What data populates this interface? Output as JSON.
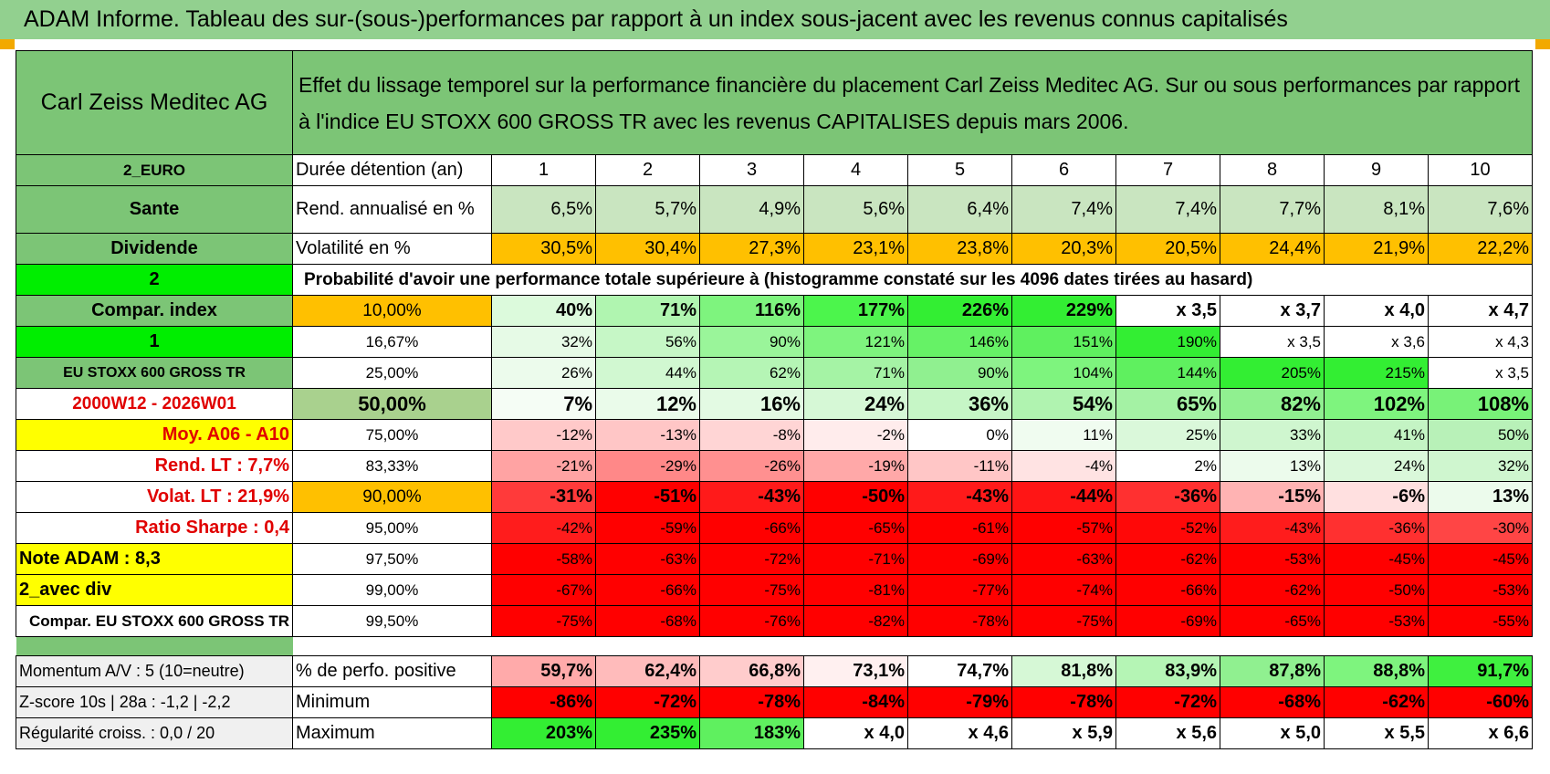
{
  "title": "ADAM Informe. Tableau des sur-(sous-)performances par rapport à un index sous-jacent avec les revenus connus capitalisés",
  "company": "Carl Zeiss Meditec AG",
  "description_line1": "Effet du lissage temporel sur la performance financière du placement Carl Zeiss Meditec AG. Sur ou sous performances par rapport",
  "description_line2": "à l'indice EU STOXX 600 GROSS TR avec les revenus CAPITALISES depuis mars 2006.",
  "side": {
    "currency": "2_EURO",
    "sector": "Sante",
    "dividend": "Dividende",
    "code2": "2",
    "compar_index": "Compar. index",
    "code1": "1",
    "index_name": "EU STOXX 600 GROSS TR",
    "period": "2000W12 - 2026W01",
    "moy": "Moy. A06 - A10",
    "rend_lt": "Rend. LT :    7,7%",
    "volat_lt": "Volat. LT :    21,9%",
    "sharpe": "Ratio Sharpe :     0,4",
    "note": "Note ADAM : 8,3",
    "avec_div": "2_avec div",
    "compar_full": "Compar. EU STOXX 600 GROSS TR"
  },
  "durations_label": "Durée détention (an)",
  "years": [
    "1",
    "2",
    "3",
    "4",
    "5",
    "6",
    "7",
    "8",
    "9",
    "10"
  ],
  "rend_label": "Rend. annualisé en %",
  "rend": [
    "6,5%",
    "5,7%",
    "4,9%",
    "5,6%",
    "6,4%",
    "7,4%",
    "7,4%",
    "7,7%",
    "8,1%",
    "7,6%"
  ],
  "vol_label": "Volatilité en %",
  "vol": [
    "30,5%",
    "30,4%",
    "27,3%",
    "23,1%",
    "23,8%",
    "20,3%",
    "20,5%",
    "24,4%",
    "21,9%",
    "22,2%"
  ],
  "prob_label": "Probabilité d'avoir une performance totale supérieure à (histogramme constaté sur les 4096 dates tirées au hasard)",
  "prob_rows": [
    {
      "pct": "10,00%",
      "vals": [
        "40%",
        "71%",
        "116%",
        "177%",
        "226%",
        "229%",
        "x 3,5",
        "x 3,7",
        "x 4,0",
        "x 4,7"
      ]
    },
    {
      "pct": "16,67%",
      "vals": [
        "32%",
        "56%",
        "90%",
        "121%",
        "146%",
        "151%",
        "190%",
        "x 3,5",
        "x 3,6",
        "x 4,3"
      ]
    },
    {
      "pct": "25,00%",
      "vals": [
        "26%",
        "44%",
        "62%",
        "71%",
        "90%",
        "104%",
        "144%",
        "205%",
        "215%",
        "x 3,5"
      ]
    },
    {
      "pct": "50,00%",
      "vals": [
        "7%",
        "12%",
        "16%",
        "24%",
        "36%",
        "54%",
        "65%",
        "82%",
        "102%",
        "108%"
      ]
    },
    {
      "pct": "75,00%",
      "vals": [
        "-12%",
        "-13%",
        "-8%",
        "-2%",
        "0%",
        "11%",
        "25%",
        "33%",
        "41%",
        "50%"
      ]
    },
    {
      "pct": "83,33%",
      "vals": [
        "-21%",
        "-29%",
        "-26%",
        "-19%",
        "-11%",
        "-4%",
        "2%",
        "13%",
        "24%",
        "32%"
      ]
    },
    {
      "pct": "90,00%",
      "vals": [
        "-31%",
        "-51%",
        "-43%",
        "-50%",
        "-43%",
        "-44%",
        "-36%",
        "-15%",
        "-6%",
        "13%"
      ]
    },
    {
      "pct": "95,00%",
      "vals": [
        "-42%",
        "-59%",
        "-66%",
        "-65%",
        "-61%",
        "-57%",
        "-52%",
        "-43%",
        "-36%",
        "-30%"
      ]
    },
    {
      "pct": "97,50%",
      "vals": [
        "-58%",
        "-63%",
        "-72%",
        "-71%",
        "-69%",
        "-63%",
        "-62%",
        "-53%",
        "-45%",
        "-45%"
      ]
    },
    {
      "pct": "99,00%",
      "vals": [
        "-67%",
        "-66%",
        "-75%",
        "-81%",
        "-77%",
        "-74%",
        "-66%",
        "-62%",
        "-50%",
        "-53%"
      ]
    },
    {
      "pct": "99,50%",
      "vals": [
        "-75%",
        "-68%",
        "-76%",
        "-82%",
        "-78%",
        "-75%",
        "-69%",
        "-65%",
        "-53%",
        "-55%"
      ]
    }
  ],
  "bottom": {
    "momentum": "Momentum A/V : 5 (10=neutre)",
    "zscore": "Z-score 10s | 28a : -1,2 | -2,2",
    "regul": "Régularité croiss. : 0,0 / 20",
    "pos_label": "% de perfo. positive",
    "pos": [
      "59,7%",
      "62,4%",
      "66,8%",
      "73,1%",
      "74,7%",
      "81,8%",
      "83,9%",
      "87,8%",
      "88,8%",
      "91,7%"
    ],
    "min_label": "Minimum",
    "min": [
      "-86%",
      "-72%",
      "-78%",
      "-84%",
      "-79%",
      "-78%",
      "-72%",
      "-68%",
      "-62%",
      "-60%"
    ],
    "max_label": "Maximum",
    "max": [
      "203%",
      "235%",
      "183%",
      "x 4,0",
      "x 4,6",
      "x 5,9",
      "x 5,6",
      "x 5,0",
      "x 5,5",
      "x 6,6"
    ]
  },
  "colors": {
    "rend": [
      "#c9e5c0",
      "#c9e5c0",
      "#c9e5c0",
      "#c9e5c0",
      "#c9e5c0",
      "#c9e5c0",
      "#c9e5c0",
      "#c9e5c0",
      "#c9e5c0",
      "#c9e5c0"
    ],
    "vol": [
      "#ffc000",
      "#ffc000",
      "#ffc000",
      "#ffc000",
      "#ffc000",
      "#ffc000",
      "#ffc000",
      "#ffc000",
      "#ffc000",
      "#ffc000"
    ],
    "prob": [
      [
        "#dcfadc",
        "#b0f5b0",
        "#7ef47e",
        "#4cf54c",
        "#33ee33",
        "#33ee33",
        "#ffffff",
        "#ffffff",
        "#ffffff",
        "#ffffff"
      ],
      [
        "#e6fae6",
        "#c6f7c6",
        "#9af59a",
        "#7ef47e",
        "#66f266",
        "#5ff05f",
        "#33ee33",
        "#ffffff",
        "#ffffff",
        "#ffffff"
      ],
      [
        "#ecfbec",
        "#d1f8d1",
        "#b5f5b5",
        "#a5f3a5",
        "#90f090",
        "#7ef47e",
        "#5ff05f",
        "#33ee33",
        "#33ee33",
        "#ffffff"
      ],
      [
        "#f5fdf5",
        "#eafbea",
        "#e3fae3",
        "#d6f8d6",
        "#c6f6c6",
        "#b0f3b0",
        "#a4f2a4",
        "#90f090",
        "#7ef47e",
        "#78f278"
      ],
      [
        "#ffc9c9",
        "#ffc6c6",
        "#ffd5d5",
        "#ffecec",
        "#ffffff",
        "#f0fcf0",
        "#daf8da",
        "#cff6cf",
        "#c4f4c4",
        "#b8f1b8"
      ],
      [
        "#ffa3a3",
        "#ff8888",
        "#ff9090",
        "#ffa8a8",
        "#ffc6c6",
        "#ffe3e3",
        "#ffffff",
        "#ecfbec",
        "#daf8da",
        "#cff6cf"
      ],
      [
        "#ff3a3a",
        "#ff0000",
        "#ff1a1a",
        "#ff0000",
        "#ff1a1a",
        "#ff1515",
        "#ff3030",
        "#ffb3b3",
        "#ffe0e0",
        "#ecfbec"
      ],
      [
        "#ff1c1c",
        "#ff0000",
        "#ff0000",
        "#ff0000",
        "#ff0000",
        "#ff0000",
        "#ff0808",
        "#ff1c1c",
        "#ff3030",
        "#ff4545"
      ],
      [
        "#ff0000",
        "#ff0000",
        "#ff0000",
        "#ff0000",
        "#ff0000",
        "#ff0000",
        "#ff0000",
        "#ff0000",
        "#ff0000",
        "#ff0000"
      ],
      [
        "#ff0000",
        "#ff0000",
        "#ff0000",
        "#ff0000",
        "#ff0000",
        "#ff0000",
        "#ff0000",
        "#ff0000",
        "#ff0000",
        "#ff0000"
      ],
      [
        "#ff0000",
        "#ff0000",
        "#ff0000",
        "#ff0000",
        "#ff0000",
        "#ff0000",
        "#ff0000",
        "#ff0000",
        "#ff0000",
        "#ff0000"
      ]
    ],
    "pos": [
      "#ffaaaa",
      "#ffbbbb",
      "#ffcccc",
      "#fff0f0",
      "#ffffff",
      "#d6f8d6",
      "#b5f5b5",
      "#90f090",
      "#7ef47e",
      "#3ff03f"
    ],
    "min": [
      "#ff0000",
      "#ff0000",
      "#ff0000",
      "#ff0000",
      "#ff0000",
      "#ff0000",
      "#ff0000",
      "#ff0000",
      "#ff0000",
      "#ff0000"
    ],
    "max": [
      "#33ee33",
      "#33ee33",
      "#5ff05f",
      "#ffffff",
      "#ffffff",
      "#ffffff",
      "#ffffff",
      "#ffffff",
      "#ffffff",
      "#ffffff"
    ]
  }
}
